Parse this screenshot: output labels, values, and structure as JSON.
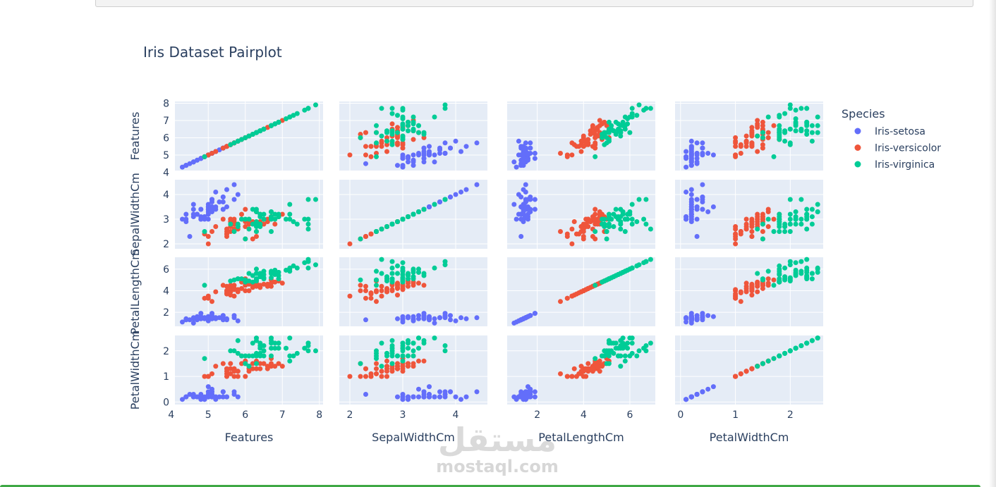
{
  "chart_data": {
    "type": "scatter",
    "title": "Iris Dataset Pairplot",
    "dimensions": [
      "Features",
      "SepalWidthCm",
      "PetalLengthCm",
      "PetalWidthCm"
    ],
    "ranges": {
      "Features": [
        4.1,
        8.1
      ],
      "SepalWidthCm": [
        1.8,
        4.6
      ],
      "PetalLengthCm": [
        0.7,
        7.1
      ],
      "PetalWidthCm": [
        -0.1,
        2.6
      ]
    },
    "ticks": {
      "Features": [
        4,
        5,
        6,
        7,
        8
      ],
      "SepalWidthCm": [
        2,
        3,
        4
      ],
      "PetalLengthCm": [
        2,
        4,
        6
      ],
      "PetalWidthCm": [
        0,
        1,
        2
      ]
    },
    "grid": true,
    "legend": {
      "title": "Species",
      "placement": "top-right",
      "entries": [
        "Iris-setosa",
        "Iris-versicolor",
        "Iris-virginica"
      ]
    },
    "series": [
      {
        "name": "Iris-setosa",
        "color": "#636efa",
        "points": [
          [
            5.1,
            3.5,
            1.4,
            0.2
          ],
          [
            4.9,
            3.0,
            1.4,
            0.2
          ],
          [
            4.7,
            3.2,
            1.3,
            0.2
          ],
          [
            4.6,
            3.1,
            1.5,
            0.2
          ],
          [
            5.0,
            3.6,
            1.4,
            0.2
          ],
          [
            5.4,
            3.9,
            1.7,
            0.4
          ],
          [
            4.6,
            3.4,
            1.4,
            0.3
          ],
          [
            5.0,
            3.4,
            1.5,
            0.2
          ],
          [
            4.4,
            2.9,
            1.4,
            0.2
          ],
          [
            4.9,
            3.1,
            1.5,
            0.1
          ],
          [
            5.4,
            3.7,
            1.5,
            0.2
          ],
          [
            4.8,
            3.4,
            1.6,
            0.2
          ],
          [
            4.8,
            3.0,
            1.4,
            0.1
          ],
          [
            4.3,
            3.0,
            1.1,
            0.1
          ],
          [
            5.8,
            4.0,
            1.2,
            0.2
          ],
          [
            5.7,
            4.4,
            1.5,
            0.4
          ],
          [
            5.4,
            3.9,
            1.3,
            0.4
          ],
          [
            5.1,
            3.5,
            1.4,
            0.3
          ],
          [
            5.7,
            3.8,
            1.7,
            0.3
          ],
          [
            5.1,
            3.8,
            1.5,
            0.3
          ],
          [
            5.4,
            3.4,
            1.7,
            0.2
          ],
          [
            5.1,
            3.7,
            1.5,
            0.4
          ],
          [
            4.6,
            3.6,
            1.0,
            0.2
          ],
          [
            5.1,
            3.3,
            1.7,
            0.5
          ],
          [
            4.8,
            3.4,
            1.9,
            0.2
          ],
          [
            5.0,
            3.0,
            1.6,
            0.2
          ],
          [
            5.0,
            3.4,
            1.6,
            0.4
          ],
          [
            5.2,
            3.5,
            1.5,
            0.2
          ],
          [
            5.2,
            3.4,
            1.4,
            0.2
          ],
          [
            4.7,
            3.2,
            1.6,
            0.2
          ],
          [
            4.8,
            3.1,
            1.6,
            0.2
          ],
          [
            5.4,
            3.4,
            1.5,
            0.4
          ],
          [
            5.2,
            4.1,
            1.5,
            0.1
          ],
          [
            5.5,
            4.2,
            1.4,
            0.2
          ],
          [
            4.9,
            3.1,
            1.5,
            0.1
          ],
          [
            5.0,
            3.2,
            1.2,
            0.2
          ],
          [
            5.5,
            3.5,
            1.3,
            0.2
          ],
          [
            4.4,
            3.0,
            1.3,
            0.2
          ],
          [
            5.1,
            3.4,
            1.5,
            0.2
          ],
          [
            5.0,
            3.5,
            1.3,
            0.3
          ],
          [
            4.5,
            2.3,
            1.3,
            0.3
          ],
          [
            4.4,
            3.2,
            1.3,
            0.2
          ],
          [
            5.0,
            3.5,
            1.6,
            0.6
          ],
          [
            5.1,
            3.8,
            1.9,
            0.4
          ],
          [
            4.8,
            3.0,
            1.4,
            0.3
          ],
          [
            5.1,
            3.8,
            1.6,
            0.2
          ],
          [
            4.6,
            3.2,
            1.4,
            0.2
          ],
          [
            5.3,
            3.7,
            1.5,
            0.2
          ],
          [
            5.0,
            3.3,
            1.4,
            0.2
          ]
        ]
      },
      {
        "name": "Iris-versicolor",
        "color": "#ef553b",
        "points": [
          [
            7.0,
            3.2,
            4.7,
            1.4
          ],
          [
            6.4,
            3.2,
            4.5,
            1.5
          ],
          [
            6.9,
            3.1,
            4.9,
            1.5
          ],
          [
            5.5,
            2.3,
            4.0,
            1.3
          ],
          [
            6.5,
            2.8,
            4.6,
            1.5
          ],
          [
            5.7,
            2.8,
            4.5,
            1.3
          ],
          [
            6.3,
            3.3,
            4.7,
            1.6
          ],
          [
            4.9,
            2.4,
            3.3,
            1.0
          ],
          [
            6.6,
            2.9,
            4.6,
            1.3
          ],
          [
            5.2,
            2.7,
            3.9,
            1.4
          ],
          [
            5.0,
            2.0,
            3.5,
            1.0
          ],
          [
            5.9,
            3.0,
            4.2,
            1.5
          ],
          [
            6.0,
            2.2,
            4.0,
            1.0
          ],
          [
            6.1,
            2.9,
            4.7,
            1.4
          ],
          [
            5.6,
            2.9,
            3.6,
            1.3
          ],
          [
            6.7,
            3.1,
            4.4,
            1.4
          ],
          [
            5.6,
            3.0,
            4.5,
            1.5
          ],
          [
            5.8,
            2.7,
            4.1,
            1.0
          ],
          [
            6.2,
            2.2,
            4.5,
            1.5
          ],
          [
            5.6,
            2.5,
            3.9,
            1.1
          ],
          [
            5.9,
            3.2,
            4.8,
            1.8
          ],
          [
            6.1,
            2.8,
            4.0,
            1.3
          ],
          [
            6.3,
            2.5,
            4.9,
            1.5
          ],
          [
            6.1,
            2.8,
            4.7,
            1.2
          ],
          [
            6.4,
            2.9,
            4.3,
            1.3
          ],
          [
            6.6,
            3.0,
            4.4,
            1.4
          ],
          [
            6.8,
            2.8,
            4.8,
            1.4
          ],
          [
            6.7,
            3.0,
            5.0,
            1.7
          ],
          [
            6.0,
            2.9,
            4.5,
            1.5
          ],
          [
            5.7,
            2.6,
            3.5,
            1.0
          ],
          [
            5.5,
            2.4,
            3.8,
            1.1
          ],
          [
            5.5,
            2.4,
            3.7,
            1.0
          ],
          [
            5.8,
            2.7,
            3.9,
            1.2
          ],
          [
            6.0,
            2.7,
            5.1,
            1.6
          ],
          [
            5.4,
            3.0,
            4.5,
            1.5
          ],
          [
            6.0,
            3.4,
            4.5,
            1.6
          ],
          [
            6.7,
            3.1,
            4.7,
            1.5
          ],
          [
            6.3,
            2.3,
            4.4,
            1.3
          ],
          [
            5.6,
            3.0,
            4.1,
            1.3
          ],
          [
            5.5,
            2.5,
            4.0,
            1.3
          ],
          [
            5.5,
            2.6,
            4.4,
            1.2
          ],
          [
            6.1,
            3.0,
            4.6,
            1.4
          ],
          [
            5.8,
            2.6,
            4.0,
            1.2
          ],
          [
            5.0,
            2.3,
            3.3,
            1.0
          ],
          [
            5.6,
            2.7,
            4.2,
            1.3
          ],
          [
            5.7,
            3.0,
            4.2,
            1.2
          ],
          [
            5.7,
            2.9,
            4.2,
            1.3
          ],
          [
            6.2,
            2.9,
            4.3,
            1.3
          ],
          [
            5.1,
            2.5,
            3.0,
            1.1
          ],
          [
            5.7,
            2.8,
            4.1,
            1.3
          ]
        ]
      },
      {
        "name": "Iris-virginica",
        "color": "#00cc96",
        "points": [
          [
            6.3,
            3.3,
            6.0,
            2.5
          ],
          [
            5.8,
            2.7,
            5.1,
            1.9
          ],
          [
            7.1,
            3.0,
            5.9,
            2.1
          ],
          [
            6.3,
            2.9,
            5.6,
            1.8
          ],
          [
            6.5,
            3.0,
            5.8,
            2.2
          ],
          [
            7.6,
            3.0,
            6.6,
            2.1
          ],
          [
            4.9,
            2.5,
            4.5,
            1.7
          ],
          [
            7.3,
            2.9,
            6.3,
            1.8
          ],
          [
            6.7,
            2.5,
            5.8,
            1.8
          ],
          [
            7.2,
            3.6,
            6.1,
            2.5
          ],
          [
            6.5,
            3.2,
            5.1,
            2.0
          ],
          [
            6.4,
            2.7,
            5.3,
            1.9
          ],
          [
            6.8,
            3.0,
            5.5,
            2.1
          ],
          [
            5.7,
            2.5,
            5.0,
            2.0
          ],
          [
            5.8,
            2.8,
            5.1,
            2.4
          ],
          [
            6.4,
            3.2,
            5.3,
            2.3
          ],
          [
            6.5,
            3.0,
            5.5,
            1.8
          ],
          [
            7.7,
            3.8,
            6.7,
            2.2
          ],
          [
            7.7,
            2.6,
            6.9,
            2.3
          ],
          [
            6.0,
            2.2,
            5.0,
            1.5
          ],
          [
            6.9,
            3.2,
            5.7,
            2.3
          ],
          [
            5.6,
            2.8,
            4.9,
            2.0
          ],
          [
            7.7,
            2.8,
            6.7,
            2.0
          ],
          [
            6.3,
            2.7,
            4.9,
            1.8
          ],
          [
            6.7,
            3.3,
            5.7,
            2.1
          ],
          [
            7.2,
            3.2,
            6.0,
            1.8
          ],
          [
            6.2,
            2.8,
            4.8,
            1.8
          ],
          [
            6.1,
            3.0,
            4.9,
            1.8
          ],
          [
            6.4,
            2.8,
            5.6,
            2.1
          ],
          [
            7.2,
            3.0,
            5.8,
            1.6
          ],
          [
            7.4,
            2.8,
            6.1,
            1.9
          ],
          [
            7.9,
            3.8,
            6.4,
            2.0
          ],
          [
            6.4,
            2.8,
            5.6,
            2.2
          ],
          [
            6.3,
            2.8,
            5.1,
            1.5
          ],
          [
            6.1,
            2.6,
            5.6,
            1.4
          ],
          [
            7.7,
            3.0,
            6.1,
            2.3
          ],
          [
            6.3,
            3.4,
            5.6,
            2.4
          ],
          [
            6.4,
            3.1,
            5.5,
            1.8
          ],
          [
            6.0,
            3.0,
            4.8,
            1.8
          ],
          [
            6.9,
            3.1,
            5.4,
            2.1
          ],
          [
            6.7,
            3.1,
            5.6,
            2.4
          ],
          [
            6.9,
            3.1,
            5.1,
            2.3
          ],
          [
            6.8,
            3.2,
            5.9,
            2.3
          ],
          [
            6.7,
            3.3,
            5.7,
            2.5
          ],
          [
            6.7,
            3.0,
            5.2,
            2.3
          ],
          [
            6.3,
            2.5,
            5.0,
            1.9
          ],
          [
            6.5,
            3.0,
            5.2,
            2.0
          ],
          [
            6.2,
            3.4,
            5.4,
            2.3
          ],
          [
            5.9,
            3.0,
            5.1,
            1.8
          ]
        ]
      }
    ]
  },
  "watermark": {
    "arabic": "مستقل",
    "latin": "mostaql.com"
  }
}
